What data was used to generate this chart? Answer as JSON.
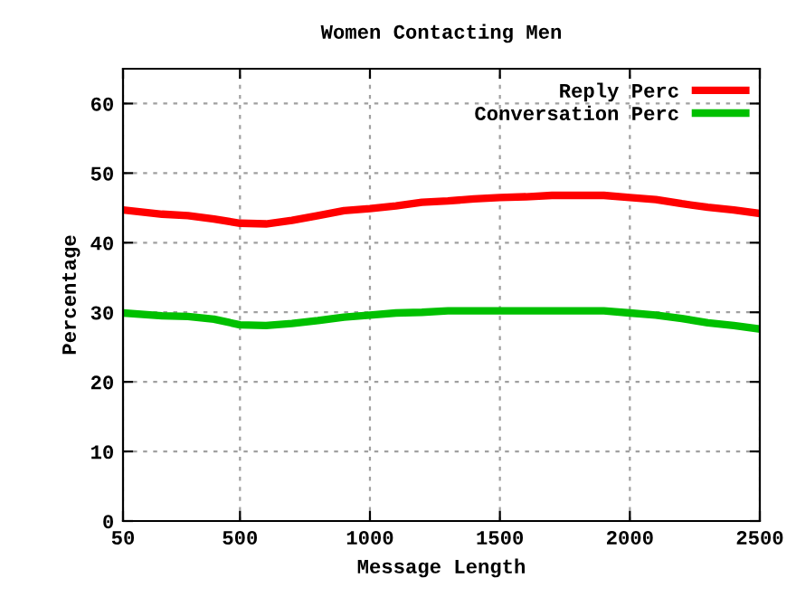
{
  "chart_data": {
    "type": "line",
    "title": "Women Contacting Men",
    "xlabel": "Message Length",
    "ylabel": "Percentage",
    "xlim": [
      50,
      2500
    ],
    "xticks": [
      50,
      500,
      1000,
      1500,
      2000,
      2500
    ],
    "ylim": [
      0,
      65
    ],
    "yticks": [
      0,
      10,
      20,
      30,
      40,
      50,
      60
    ],
    "grid": true,
    "legend": "top right",
    "line_style": "solid",
    "marker": "none",
    "series": [
      {
        "name": "Reply Perc",
        "color": "#ff0000",
        "x": [
          50,
          200,
          300,
          400,
          500,
          600,
          700,
          800,
          900,
          1000,
          1100,
          1200,
          1300,
          1400,
          1500,
          1600,
          1700,
          1800,
          1900,
          2000,
          2100,
          2200,
          2300,
          2400,
          2500
        ],
        "values": [
          44.7,
          44.1,
          43.9,
          43.4,
          42.8,
          42.7,
          43.2,
          43.9,
          44.6,
          44.9,
          45.3,
          45.8,
          46.0,
          46.3,
          46.5,
          46.6,
          46.8,
          46.8,
          46.8,
          46.5,
          46.2,
          45.6,
          45.1,
          44.7,
          44.2
        ]
      },
      {
        "name": "Conversation Perc",
        "color": "#00c000",
        "x": [
          50,
          200,
          300,
          400,
          500,
          600,
          700,
          800,
          900,
          1000,
          1100,
          1200,
          1300,
          1500,
          1700,
          1900,
          2000,
          2100,
          2200,
          2300,
          2400,
          2500
        ],
        "values": [
          29.9,
          29.5,
          29.4,
          29.0,
          28.2,
          28.1,
          28.4,
          28.8,
          29.3,
          29.6,
          29.9,
          30.0,
          30.2,
          30.2,
          30.2,
          30.2,
          29.9,
          29.6,
          29.1,
          28.5,
          28.1,
          27.6
        ]
      }
    ]
  }
}
